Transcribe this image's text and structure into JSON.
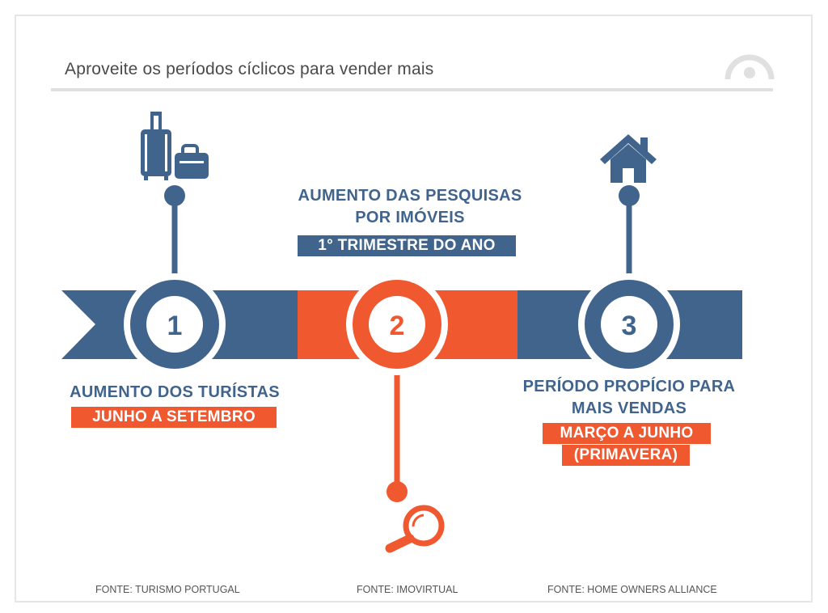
{
  "title": "Aproveite os períodos cíclicos para vender mais",
  "colors": {
    "blue": "#41648d",
    "orange": "#f0582f",
    "gray": "#e0e0e0"
  },
  "steps": [
    {
      "number": "1",
      "icon": "luggage-icon",
      "heading": "AUMENTO DOS TURÍSTAS",
      "period": "JUNHO A SETEMBRO",
      "source": "FONTE: TURISMO PORTUGAL"
    },
    {
      "number": "2",
      "icon": "magnifier-icon",
      "heading_line1": "AUMENTO DAS PESQUISAS",
      "heading_line2": "POR IMÓVEIS",
      "period": "1° TRIMESTRE DO ANO",
      "source": "FONTE: IMOVIRTUAL"
    },
    {
      "number": "3",
      "icon": "house-icon",
      "heading_line1": "PERÍODO PROPÍCIO PARA",
      "heading_line2": "MAIS VENDAS",
      "period_line1": "MARÇO A JUNHO",
      "period_line2": "(PRIMAVERA)",
      "source": "FONTE: HOME OWNERS ALLIANCE"
    }
  ]
}
